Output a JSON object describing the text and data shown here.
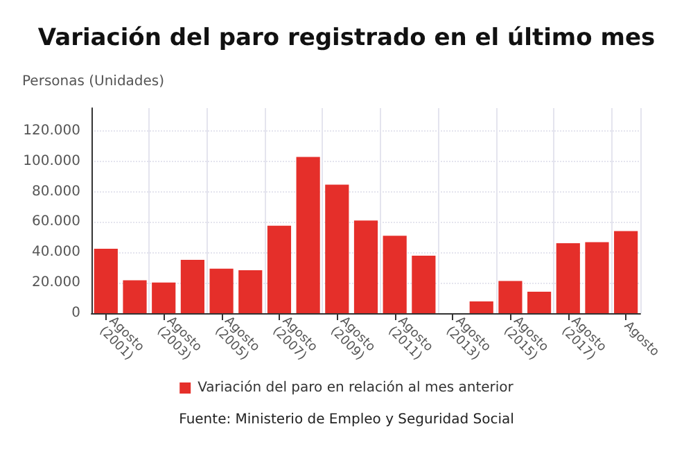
{
  "chart_data": {
    "type": "bar",
    "title": "Variación del paro registrado en el último mes",
    "ylabel": "Personas (Unidades)",
    "categories": [
      "Agosto (2001)",
      null,
      "Agosto (2003)",
      null,
      "Agosto (2005)",
      null,
      "Agosto (2007)",
      null,
      "Agosto (2009)",
      null,
      "Agosto (2011)",
      null,
      "Agosto (2013)",
      null,
      "Agosto (2015)",
      null,
      "Agosto (2017)",
      null,
      "Agosto"
    ],
    "series": [
      {
        "name": "Variación del paro en relación al mes anterior",
        "color": "#e52f2a",
        "values": [
          42400,
          21700,
          20200,
          35100,
          29300,
          28300,
          57600,
          102900,
          84600,
          61000,
          51000,
          37800,
          0,
          7800,
          21200,
          14100,
          46100,
          46800,
          54100
        ]
      }
    ],
    "ylim": [
      0,
      135000
    ],
    "yticks": [
      0,
      {
        "value": 20000,
        "label": "20.000"
      },
      {
        "value": 40000,
        "label": "40.000"
      },
      {
        "value": 60000,
        "label": "60.000"
      },
      {
        "value": 80000,
        "label": "80.000"
      },
      {
        "value": 100000,
        "label": "100.000"
      },
      {
        "value": 120000,
        "label": "120.000"
      }
    ],
    "grid": true,
    "legend": "bottom",
    "annotations": [
      "Fuente: Ministerio de Empleo y Seguridad Social"
    ]
  }
}
